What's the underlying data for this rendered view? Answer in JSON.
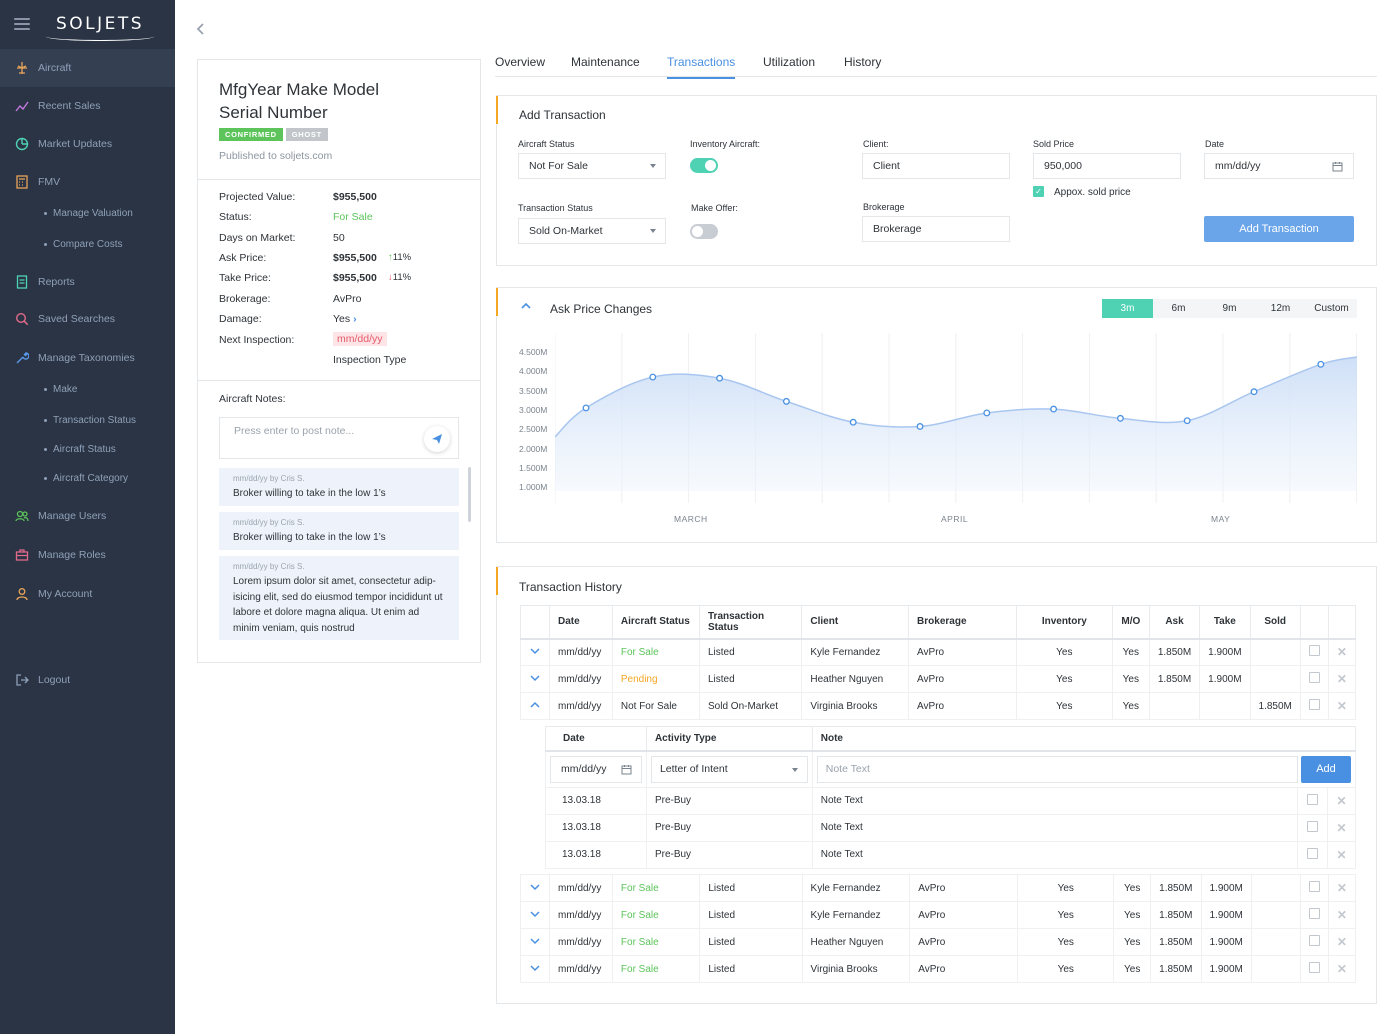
{
  "app": {
    "logo": "SOLJETS"
  },
  "sidebar": {
    "items": [
      {
        "label": "Aircraft",
        "icon": "airplane-icon"
      },
      {
        "label": "Recent Sales",
        "icon": "trend-icon"
      },
      {
        "label": "Market Updates",
        "icon": "chart-circle-icon"
      },
      {
        "label": "FMV",
        "icon": "calculator-icon"
      },
      {
        "label": "Reports",
        "icon": "report-icon"
      },
      {
        "label": "Saved Searches",
        "icon": "search-icon"
      },
      {
        "label": "Manage Taxonomies",
        "icon": "wrench-icon"
      },
      {
        "label": "Manage Users",
        "icon": "users-icon"
      },
      {
        "label": "Manage Roles",
        "icon": "briefcase-icon"
      },
      {
        "label": "My Account",
        "icon": "user-icon"
      },
      {
        "label": "Logout",
        "icon": "logout-icon"
      }
    ],
    "fmv_sub": [
      "Manage Valuation",
      "Compare Costs"
    ],
    "tax_sub": [
      "Make",
      "Transaction Status",
      "Aircraft Status",
      "Aircraft Category"
    ]
  },
  "aircraft": {
    "title_line1": "MfgYear Make Model",
    "title_line2": "Serial Number",
    "badge_confirmed": "CONFIRMED",
    "badge_ghost": "GHOST",
    "published": "Published to soljets.com",
    "details": [
      {
        "k": "Projected Value:",
        "v": "$955,500"
      },
      {
        "k": "Status:",
        "v": "For Sale"
      },
      {
        "k": "Days on Market:",
        "v": "50"
      },
      {
        "k": "Ask Price:",
        "v": "$955,500",
        "delta": "11%"
      },
      {
        "k": "Take Price:",
        "v": "$955,500",
        "delta": "11%"
      },
      {
        "k": "Brokerage:",
        "v": "AvPro"
      },
      {
        "k": "Damage:",
        "v": "Yes"
      },
      {
        "k": "Next Inspection:",
        "v": "mm/dd/yy"
      }
    ],
    "inspection_type": "Inspection Type",
    "notes_label": "Aircraft Notes:",
    "note_placeholder": "Press enter to post note...",
    "notes": [
      {
        "meta": "mm/dd/yy by Cris S.",
        "text": "Broker willing to take in the low 1’s"
      },
      {
        "meta": "mm/dd/yy by Cris S.",
        "text": "Broker willing to take in the low 1’s"
      },
      {
        "meta": "mm/dd/yy by Cris S.",
        "text": "Lorem ipsum dolor sit amet, consectetur adip-isicing elit, sed do eiusmod tempor incididunt ut labore et dolore magna aliqua. Ut enim ad minim veniam, quis nostrud"
      }
    ]
  },
  "tabs": [
    "Overview",
    "Maintenance",
    "Transactions",
    "Utilization",
    "History"
  ],
  "add_tx": {
    "title": "Add Transaction",
    "aircraft_status_label": "Aircraft Status",
    "aircraft_status": "Not For Sale",
    "inventory_label": "Inventory Aircraft:",
    "client_label": "Client:",
    "client_placeholder": "Client",
    "sold_price_label": "Sold Price",
    "sold_price": "950,000",
    "date_label": "Date",
    "date_placeholder": "mm/dd/yy",
    "approx_label": "Appox. sold price",
    "tx_status_label": "Transaction Status",
    "tx_status": "Sold On-Market",
    "make_offer_label": "Make Offer:",
    "brokerage_label": "Brokerage",
    "brokerage_placeholder": "Brokerage",
    "button": "Add Transaction",
    "colors": {
      "accent": "#4fd1b4",
      "button": "#6aa5ea"
    }
  },
  "chart_data": {
    "type": "area",
    "title": "Ask Price Changes",
    "ranges": [
      "3m",
      "6m",
      "9m",
      "12m",
      "Custom"
    ],
    "selected_range": "3m",
    "y_ticks": [
      "4.500M",
      "4.000M",
      "3.500M",
      "3.000M",
      "2.500M",
      "2.000M",
      "1.500M",
      "1.000M"
    ],
    "x_ticks": [
      "MARCH",
      "APRIL",
      "MAY"
    ],
    "ylim": [
      1.0,
      4.5
    ],
    "series": [
      {
        "values": [
          3.2,
          4.0,
          3.97,
          3.37,
          2.83,
          2.72,
          3.07,
          3.17,
          2.93,
          2.87,
          3.62,
          4.33
        ]
      }
    ],
    "line_color": "#a9c6f0"
  },
  "history": {
    "title": "Transaction History",
    "headers": [
      "Date",
      "Aircraft  Status",
      "Transaction Status",
      "Client",
      "Brokerage",
      "Inventory",
      "M/O",
      "Ask",
      "Take",
      "Sold"
    ],
    "rows_top": [
      {
        "date": "mm/dd/yy",
        "status": "For Sale",
        "status_color": "green",
        "tx": "Listed",
        "client": "Kyle Fernandez",
        "brokerage": "AvPro",
        "inv": "Yes",
        "mo": "Yes",
        "ask": "1.850M",
        "take": "1.900M",
        "sold": "",
        "open": false
      },
      {
        "date": "mm/dd/yy",
        "status": "Pending",
        "status_color": "orange",
        "tx": "Listed",
        "client": "Heather Nguyen",
        "brokerage": "AvPro",
        "inv": "Yes",
        "mo": "Yes",
        "ask": "1.850M",
        "take": "1.900M",
        "sold": "",
        "open": false
      },
      {
        "date": "mm/dd/yy",
        "status": "Not For Sale",
        "status_color": "normal",
        "tx": "Sold On-Market",
        "client": "Virginia Brooks",
        "brokerage": "AvPro",
        "inv": "Yes",
        "mo": "Yes",
        "ask": "",
        "take": "",
        "sold": "1.850M",
        "open": true
      }
    ],
    "sub": {
      "headers": [
        "Date",
        "Activity Type",
        "Note"
      ],
      "date_placeholder": "mm/dd/yy",
      "activity": "Letter of Intent",
      "note_placeholder": "Note Text",
      "add": "Add",
      "rows": [
        {
          "date": "13.03.18",
          "type": "Pre-Buy",
          "note": "Note Text"
        },
        {
          "date": "13.03.18",
          "type": "Pre-Buy",
          "note": "Note Text"
        },
        {
          "date": "13.03.18",
          "type": "Pre-Buy",
          "note": "Note Text"
        }
      ]
    },
    "rows_bottom": [
      {
        "date": "mm/dd/yy",
        "status": "For Sale",
        "status_color": "green",
        "tx": "Listed",
        "client": "Kyle Fernandez",
        "brokerage": "AvPro",
        "inv": "Yes",
        "mo": "Yes",
        "ask": "1.850M",
        "take": "1.900M",
        "sold": ""
      },
      {
        "date": "mm/dd/yy",
        "status": "For Sale",
        "status_color": "green",
        "tx": "Listed",
        "client": "Kyle Fernandez",
        "brokerage": "AvPro",
        "inv": "Yes",
        "mo": "Yes",
        "ask": "1.850M",
        "take": "1.900M",
        "sold": ""
      },
      {
        "date": "mm/dd/yy",
        "status": "For Sale",
        "status_color": "green",
        "tx": "Listed",
        "client": "Heather Nguyen",
        "brokerage": "AvPro",
        "inv": "Yes",
        "mo": "Yes",
        "ask": "1.850M",
        "take": "1.900M",
        "sold": ""
      },
      {
        "date": "mm/dd/yy",
        "status": "For Sale",
        "status_color": "green",
        "tx": "Listed",
        "client": "Virginia Brooks",
        "brokerage": "AvPro",
        "inv": "Yes",
        "mo": "Yes",
        "ask": "1.850M",
        "take": "1.900M",
        "sold": ""
      }
    ]
  }
}
